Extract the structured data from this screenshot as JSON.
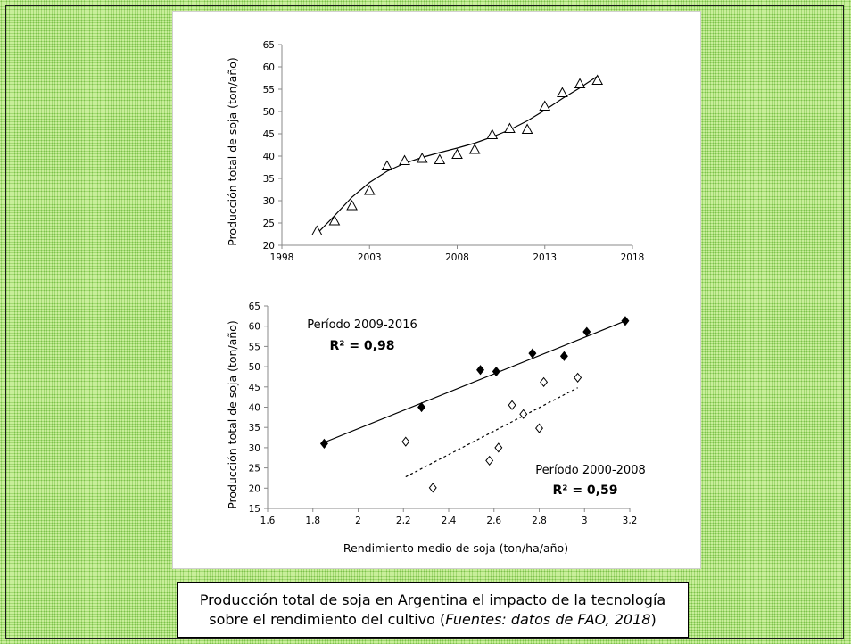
{
  "caption": {
    "line1": "Producción total de soja en Argentina el impacto de la tecnología",
    "line2_prefix": "sobre el rendimiento del cultivo (",
    "line2_italic": "Fuentes: datos de FAO, 2018",
    "line2_suffix": ")"
  },
  "chart_data": [
    {
      "type": "scatter",
      "ylabel": "Producción total de soja (ton/año)",
      "xlabel": "",
      "xlim": [
        1998,
        2018
      ],
      "ylim": [
        20,
        65
      ],
      "xticks": [
        1998,
        2003,
        2008,
        2013,
        2018
      ],
      "yticks": [
        20,
        25,
        30,
        35,
        40,
        45,
        50,
        55,
        60,
        65
      ],
      "series": [
        {
          "marker": "open-triangle",
          "x": [
            2000,
            2001,
            2002,
            2003,
            2004,
            2005,
            2006,
            2007,
            2008,
            2009,
            2010,
            2011,
            2012,
            2013,
            2014,
            2015,
            2016
          ],
          "y": [
            23.2,
            25.5,
            28.9,
            32.3,
            37.8,
            39,
            39.5,
            39.2,
            40.4,
            41.5,
            44.8,
            46.2,
            46,
            51.2,
            54.2,
            56.2,
            57
          ]
        }
      ],
      "trendline": {
        "style": "solid",
        "x": [
          2000,
          2001,
          2002,
          2003,
          2004,
          2005,
          2006,
          2007,
          2008,
          2009,
          2010,
          2011,
          2012,
          2013,
          2014,
          2015,
          2016
        ],
        "y": [
          22.6,
          26.6,
          30.8,
          34.1,
          36.6,
          38.4,
          39.7,
          40.8,
          41.8,
          42.9,
          44.3,
          45.9,
          47.9,
          50.3,
          52.9,
          55.3,
          57.9
        ]
      }
    },
    {
      "type": "scatter",
      "xlabel": "Rendimiento medio de soja (ton/ha/año)",
      "ylabel": "Producción total de soja (ton/año)",
      "xlim": [
        1.6,
        3.2
      ],
      "ylim": [
        15,
        65
      ],
      "xticks": [
        "1,6",
        "1,8",
        "2",
        "2,2",
        "2,4",
        "2,6",
        "2,8",
        "3",
        "3,2"
      ],
      "yticks": [
        15,
        20,
        25,
        30,
        35,
        40,
        45,
        50,
        55,
        60,
        65
      ],
      "series": [
        {
          "marker": "filled-diamond",
          "x": [
            1.85,
            2.28,
            2.54,
            2.61,
            2.77,
            2.91,
            3.01,
            3.18
          ],
          "y": [
            31,
            40,
            49.2,
            48.8,
            53.3,
            52.6,
            58.6,
            61.3
          ]
        },
        {
          "marker": "open-diamond",
          "x": [
            2.21,
            2.33,
            2.58,
            2.62,
            2.68,
            2.73,
            2.8,
            2.82,
            2.97
          ],
          "y": [
            31.5,
            20.1,
            26.8,
            30,
            40.5,
            38.3,
            34.8,
            46.2,
            47.3
          ]
        }
      ],
      "trendlines": [
        {
          "style": "solid",
          "x": [
            1.85,
            3.18
          ],
          "y": [
            31.3,
            61.3
          ]
        },
        {
          "style": "dashed",
          "x": [
            2.21,
            2.97
          ],
          "y": [
            22.8,
            44.8
          ]
        }
      ],
      "annotations": [
        {
          "label": "Período 2009-2016",
          "r2": "R² = 0,98"
        },
        {
          "label": "Período  2000-2008",
          "r2": "R² = 0,59"
        }
      ]
    }
  ]
}
